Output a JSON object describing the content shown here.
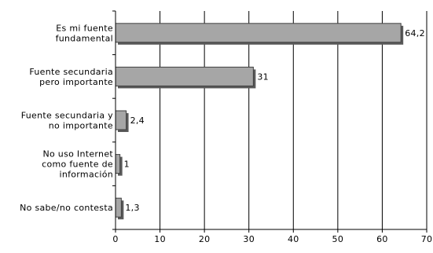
{
  "chart_data": {
    "type": "bar",
    "orientation": "horizontal",
    "categories": [
      [
        "Es mi fuente",
        "fundamental"
      ],
      [
        "Fuente secundaria",
        "pero importante"
      ],
      [
        "Fuente secundaria y",
        "no importante"
      ],
      [
        "No uso Internet",
        "como fuente de",
        "información"
      ],
      [
        "No sabe/no contesta"
      ]
    ],
    "values": [
      64.2,
      31,
      2.4,
      1,
      1.3
    ],
    "value_labels": [
      "64,2",
      "31",
      "2,4",
      "1",
      "1,3"
    ],
    "xticks": [
      0,
      10,
      20,
      30,
      40,
      50,
      60,
      70
    ],
    "xlim": [
      0,
      70
    ],
    "title": "",
    "xlabel": "",
    "ylabel": "",
    "grid": "vertical",
    "legend": "none",
    "bar_color": "#a6a6a6",
    "bar_edge_color": "#404040"
  }
}
